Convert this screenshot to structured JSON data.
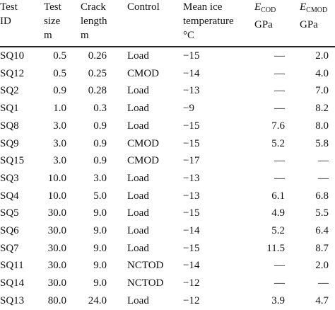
{
  "headers": {
    "id": [
      "Test",
      "ID"
    ],
    "size": [
      "Test",
      "size",
      "m"
    ],
    "crack": [
      "Crack",
      "length",
      "m"
    ],
    "control": [
      "Control"
    ],
    "temp": [
      "Mean ice",
      "temperature",
      "°C"
    ],
    "ecod": {
      "symbol": "E",
      "sub": "COD",
      "unit": "GPa"
    },
    "ecmod": {
      "symbol": "E",
      "sub": "CMOD",
      "unit": "GPa"
    }
  },
  "rows": [
    {
      "id": "SQ10",
      "size": "0.5",
      "crack": "0.26",
      "control": "Load",
      "temp": "−15",
      "ecod": "—",
      "ecmod": "2.0"
    },
    {
      "id": "SQ12",
      "size": "0.5",
      "crack": "0.25",
      "control": "CMOD",
      "temp": "−14",
      "ecod": "—",
      "ecmod": "4.0"
    },
    {
      "id": "SQ2",
      "size": "0.9",
      "crack": "0.28",
      "control": "Load",
      "temp": "−13",
      "ecod": "—",
      "ecmod": "7.0"
    },
    {
      "id": "SQ1",
      "size": "1.0",
      "crack": "0.3",
      "control": "Load",
      "temp": "−9",
      "ecod": "—",
      "ecmod": "8.2"
    },
    {
      "id": "SQ8",
      "size": "3.0",
      "crack": "0.9",
      "control": "Load",
      "temp": "−15",
      "ecod": "7.6",
      "ecmod": "8.0"
    },
    {
      "id": "SQ9",
      "size": "3.0",
      "crack": "0.9",
      "control": "CMOD",
      "temp": "−15",
      "ecod": "5.2",
      "ecmod": "5.8"
    },
    {
      "id": "SQ15",
      "size": "3.0",
      "crack": "0.9",
      "control": "CMOD",
      "temp": "−17",
      "ecod": "—",
      "ecmod": "—"
    },
    {
      "id": "SQ3",
      "size": "10.0",
      "crack": "3.0",
      "control": "Load",
      "temp": "−13",
      "ecod": "—",
      "ecmod": "—"
    },
    {
      "id": "SQ4",
      "size": "10.0",
      "crack": "5.0",
      "control": "Load",
      "temp": "−13",
      "ecod": "6.1",
      "ecmod": "6.8"
    },
    {
      "id": "SQ5",
      "size": "30.0",
      "crack": "9.0",
      "control": "Load",
      "temp": "−15",
      "ecod": "4.9",
      "ecmod": "5.5"
    },
    {
      "id": "SQ6",
      "size": "30.0",
      "crack": "9.0",
      "control": "Load",
      "temp": "−14",
      "ecod": "5.2",
      "ecmod": "6.4"
    },
    {
      "id": "SQ7",
      "size": "30.0",
      "crack": "9.0",
      "control": "Load",
      "temp": "−15",
      "ecod": "11.5",
      "ecmod": "8.7"
    },
    {
      "id": "SQ11",
      "size": "30.0",
      "crack": "9.0",
      "control": "NCTOD",
      "temp": "−14",
      "ecod": "—",
      "ecmod": "2.0"
    },
    {
      "id": "SQ14",
      "size": "30.0",
      "crack": "9.0",
      "control": "NCTOD",
      "temp": "−12",
      "ecod": "—",
      "ecmod": "—"
    },
    {
      "id": "SQ13",
      "size": "80.0",
      "crack": "24.0",
      "control": "Load",
      "temp": "−12",
      "ecod": "3.9",
      "ecmod": "4.7"
    }
  ]
}
